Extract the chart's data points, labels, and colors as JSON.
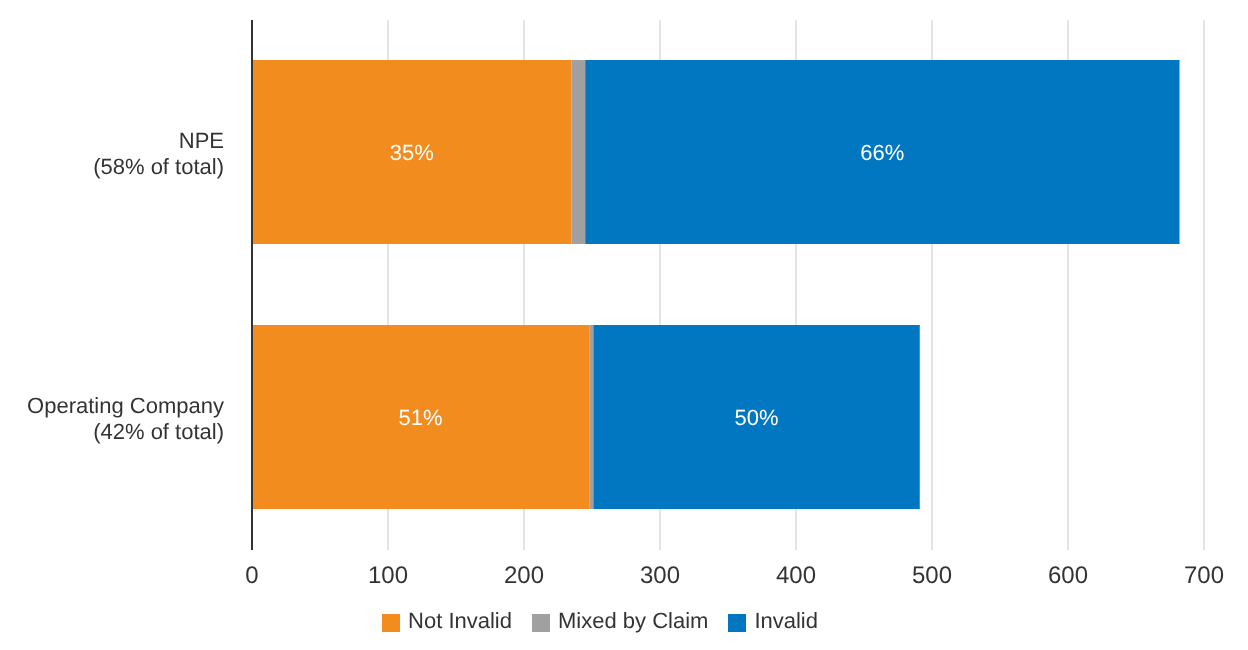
{
  "chart_data": {
    "type": "bar",
    "orientation": "horizontal",
    "stacked": true,
    "categories": [
      "NPE\n(58% of total)",
      "Operating Company\n(42% of total)"
    ],
    "series": [
      {
        "name": "Not Invalid",
        "color": "#f28c1f",
        "values": [
          235,
          248
        ]
      },
      {
        "name": "Mixed by Claim",
        "color": "#a0a0a0",
        "values": [
          10,
          3
        ]
      },
      {
        "name": "Invalid",
        "color": "#0077c0",
        "values": [
          437,
          240
        ]
      }
    ],
    "annotations": [
      "35%",
      "66%",
      "51%",
      "50%"
    ],
    "xlim": [
      0,
      700
    ],
    "xticks": [
      0,
      100,
      200,
      300,
      400,
      500,
      600,
      700
    ],
    "grid": "x",
    "legend": "bottom"
  }
}
